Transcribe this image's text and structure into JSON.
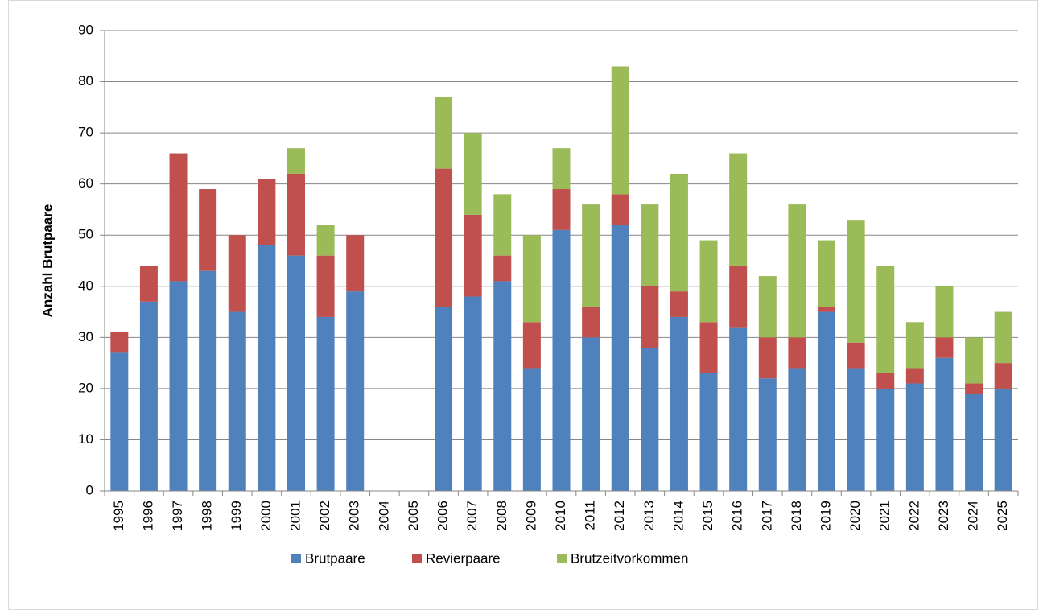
{
  "chart_data": {
    "type": "stacked_bar",
    "ylabel": "Anzahl Brutpaare",
    "categories": [
      "1995",
      "1996",
      "1997",
      "1998",
      "1999",
      "2000",
      "2001",
      "2002",
      "2003",
      "2004",
      "2005",
      "2006",
      "2007",
      "2008",
      "2009",
      "2010",
      "2011",
      "2012",
      "2013",
      "2014",
      "2015",
      "2016",
      "2017",
      "2018",
      "2019",
      "2020",
      "2021",
      "2022",
      "2023",
      "2024",
      "2025"
    ],
    "series": [
      {
        "name": "Brutpaare",
        "color": "#4f81bd",
        "values": [
          27,
          37,
          41,
          43,
          35,
          48,
          46,
          34,
          39,
          null,
          null,
          36,
          38,
          41,
          24,
          51,
          30,
          52,
          28,
          34,
          23,
          32,
          22,
          24,
          35,
          24,
          20,
          21,
          26,
          19,
          20
        ]
      },
      {
        "name": "Revierpaare",
        "color": "#c0504d",
        "values": [
          4,
          7,
          25,
          16,
          15,
          13,
          16,
          12,
          11,
          null,
          null,
          27,
          16,
          5,
          9,
          8,
          6,
          6,
          12,
          5,
          10,
          12,
          8,
          6,
          1,
          5,
          3,
          3,
          4,
          2,
          5
        ]
      },
      {
        "name": "Brutzeitvorkommen",
        "color": "#9bbb59",
        "values": [
          0,
          0,
          0,
          0,
          0,
          0,
          5,
          6,
          0,
          null,
          null,
          14,
          16,
          12,
          17,
          8,
          20,
          25,
          16,
          23,
          16,
          22,
          12,
          26,
          13,
          24,
          21,
          9,
          10,
          9,
          10
        ]
      }
    ],
    "ylim": [
      0,
      90
    ],
    "yticks": [
      0,
      10,
      20,
      30,
      40,
      50,
      60,
      70,
      80,
      90
    ],
    "grid": true,
    "legend": "bottom"
  }
}
